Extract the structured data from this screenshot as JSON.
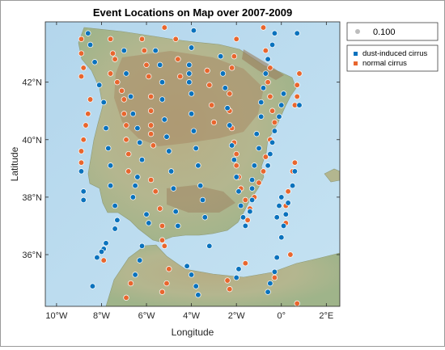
{
  "chart_data": {
    "type": "scatter",
    "title": "Event Locations on Map over 2007-2009",
    "xlabel": "Longitude",
    "ylabel": "Latitude",
    "xlim": [
      -10.5,
      2.6
    ],
    "ylim": [
      34.2,
      44.1
    ],
    "x_ticks": [
      {
        "value": -10,
        "label": "10°W"
      },
      {
        "value": -8,
        "label": "8°W"
      },
      {
        "value": -6,
        "label": "6°W"
      },
      {
        "value": -4,
        "label": "4°W"
      },
      {
        "value": -2,
        "label": "2°W"
      },
      {
        "value": 0,
        "label": "0°"
      },
      {
        "value": 2,
        "label": "2°E"
      }
    ],
    "y_ticks": [
      {
        "value": 36,
        "label": "36°N"
      },
      {
        "value": 38,
        "label": "38°N"
      },
      {
        "value": 40,
        "label": "40°N"
      },
      {
        "value": 42,
        "label": "42°N"
      }
    ],
    "size_legend": {
      "value": "0.100",
      "color": "#bdbdbd"
    },
    "legend_position": "outside-right",
    "colors": {
      "dust": "#0a72bd",
      "normal": "#e8662e",
      "sea": "#bcdcef",
      "land": "#b5b189",
      "highland": "#a1825f"
    },
    "series": [
      {
        "name": "dust-induced cirrus",
        "color": "#0a72bd",
        "points": [
          [
            -8.6,
            43.7
          ],
          [
            -8.5,
            43.3
          ],
          [
            -8.3,
            42.7
          ],
          [
            -8.1,
            41.9
          ],
          [
            -7.9,
            41.3
          ],
          [
            -7.8,
            40.4
          ],
          [
            -7.7,
            39.7
          ],
          [
            -7.6,
            39.1
          ],
          [
            -7.6,
            38.4
          ],
          [
            -7.4,
            37.7
          ],
          [
            -7.3,
            37.2
          ],
          [
            -7.4,
            36.9
          ],
          [
            -8.8,
            38.2
          ],
          [
            -8.8,
            37.9
          ],
          [
            -8.9,
            38.9
          ],
          [
            -7.8,
            36.4
          ],
          [
            -7.9,
            36.2
          ],
          [
            -8.0,
            36.1
          ],
          [
            -8.2,
            35.9
          ],
          [
            -8.4,
            34.9
          ],
          [
            -7.0,
            43.1
          ],
          [
            -6.9,
            42.3
          ],
          [
            -6.7,
            41.5
          ],
          [
            -6.6,
            40.9
          ],
          [
            -6.4,
            40.4
          ],
          [
            -6.3,
            39.9
          ],
          [
            -6.2,
            39.3
          ],
          [
            -6.4,
            38.7
          ],
          [
            -6.5,
            38.4
          ],
          [
            -6.6,
            38.0
          ],
          [
            -5.6,
            43.1
          ],
          [
            -5.4,
            42.6
          ],
          [
            -5.3,
            42.0
          ],
          [
            -5.3,
            41.4
          ],
          [
            -5.2,
            40.7
          ],
          [
            -5.1,
            40.1
          ],
          [
            -5.0,
            39.6
          ],
          [
            -4.9,
            38.9
          ],
          [
            -4.8,
            38.3
          ],
          [
            -4.7,
            37.5
          ],
          [
            -4.6,
            37.0
          ],
          [
            -6.0,
            37.4
          ],
          [
            -5.9,
            37.1
          ],
          [
            -6.2,
            36.3
          ],
          [
            -6.3,
            35.8
          ],
          [
            -6.5,
            35.3
          ],
          [
            -3.9,
            43.8
          ],
          [
            -4.0,
            43.2
          ],
          [
            -4.1,
            42.6
          ],
          [
            -4.1,
            42.3
          ],
          [
            -4.1,
            42.0
          ],
          [
            -4.0,
            41.6
          ],
          [
            -4.0,
            40.9
          ],
          [
            -3.9,
            40.3
          ],
          [
            -3.8,
            39.7
          ],
          [
            -3.7,
            39.1
          ],
          [
            -3.6,
            38.4
          ],
          [
            -3.5,
            37.9
          ],
          [
            -3.4,
            37.3
          ],
          [
            -3.2,
            36.3
          ],
          [
            -4.2,
            35.6
          ],
          [
            -4.0,
            35.3
          ],
          [
            -3.8,
            34.9
          ],
          [
            -3.7,
            34.6
          ],
          [
            -2.7,
            42.9
          ],
          [
            -2.6,
            42.3
          ],
          [
            -2.5,
            41.8
          ],
          [
            -2.4,
            41.1
          ],
          [
            -2.3,
            40.5
          ],
          [
            -2.2,
            39.8
          ],
          [
            -2.1,
            39.3
          ],
          [
            -2.0,
            38.7
          ],
          [
            -1.9,
            38.2
          ],
          [
            -1.8,
            37.7
          ],
          [
            -1.7,
            37.3
          ],
          [
            -1.6,
            37.0
          ],
          [
            -1.9,
            35.5
          ],
          [
            -2.0,
            35.2
          ],
          [
            -0.3,
            43.7
          ],
          [
            -0.4,
            43.3
          ],
          [
            -0.6,
            42.8
          ],
          [
            -0.7,
            42.3
          ],
          [
            -0.8,
            41.8
          ],
          [
            -0.9,
            41.3
          ],
          [
            -0.9,
            40.8
          ],
          [
            -1.1,
            40.2
          ],
          [
            -1.0,
            39.7
          ],
          [
            -1.2,
            39.1
          ],
          [
            -1.3,
            38.6
          ],
          [
            -1.3,
            38.3
          ],
          [
            -1.3,
            37.9
          ],
          [
            -1.4,
            37.5
          ],
          [
            0.1,
            41.6
          ],
          [
            0.0,
            41.2
          ],
          [
            -0.1,
            40.8
          ],
          [
            -0.3,
            40.3
          ],
          [
            -0.4,
            39.9
          ],
          [
            -0.5,
            39.5
          ],
          [
            -0.6,
            39.1
          ],
          [
            0.7,
            43.7
          ],
          [
            0.8,
            41.2
          ],
          [
            0.6,
            38.9
          ],
          [
            0.5,
            38.4
          ],
          [
            0.3,
            37.8
          ],
          [
            0.2,
            37.4
          ],
          [
            0.1,
            37.0
          ],
          [
            0.0,
            36.6
          ],
          [
            -0.2,
            35.9
          ],
          [
            -0.3,
            35.4
          ],
          [
            -0.5,
            35.0
          ],
          [
            -0.6,
            34.7
          ],
          [
            0.0,
            38.0
          ],
          [
            -0.1,
            37.7
          ],
          [
            -0.2,
            37.3
          ]
        ]
      },
      {
        "name": "normal cirrus",
        "color": "#e8662e",
        "points": [
          [
            -8.9,
            43.5
          ],
          [
            -8.9,
            43.0
          ],
          [
            -8.8,
            42.5
          ],
          [
            -8.9,
            42.2
          ],
          [
            -8.5,
            41.4
          ],
          [
            -8.6,
            40.9
          ],
          [
            -8.7,
            40.5
          ],
          [
            -8.8,
            40.0
          ],
          [
            -8.9,
            39.6
          ],
          [
            -8.9,
            39.2
          ],
          [
            -7.6,
            43.5
          ],
          [
            -7.5,
            43.0
          ],
          [
            -7.4,
            42.8
          ],
          [
            -7.6,
            42.3
          ],
          [
            -7.3,
            42.0
          ],
          [
            -7.1,
            41.7
          ],
          [
            -7.0,
            41.4
          ],
          [
            -7.0,
            40.9
          ],
          [
            -6.9,
            40.5
          ],
          [
            -6.9,
            40.0
          ],
          [
            -6.8,
            39.5
          ],
          [
            -6.8,
            38.9
          ],
          [
            -6.2,
            43.5
          ],
          [
            -6.1,
            43.1
          ],
          [
            -6.0,
            42.6
          ],
          [
            -5.9,
            42.2
          ],
          [
            -5.8,
            41.5
          ],
          [
            -5.8,
            41.0
          ],
          [
            -5.8,
            40.5
          ],
          [
            -5.8,
            40.2
          ],
          [
            -5.7,
            39.8
          ],
          [
            -5.2,
            43.9
          ],
          [
            -4.7,
            43.5
          ],
          [
            -4.6,
            42.8
          ],
          [
            -4.5,
            42.2
          ],
          [
            -5.8,
            38.6
          ],
          [
            -5.6,
            38.2
          ],
          [
            -5.4,
            37.6
          ],
          [
            -5.3,
            37.0
          ],
          [
            -5.3,
            36.5
          ],
          [
            -5.2,
            36.3
          ],
          [
            -5.0,
            35.5
          ],
          [
            -5.1,
            35.0
          ],
          [
            -5.3,
            34.7
          ],
          [
            -6.7,
            35.0
          ],
          [
            -6.9,
            34.5
          ],
          [
            -7.9,
            35.8
          ],
          [
            -2.0,
            43.5
          ],
          [
            -2.1,
            42.9
          ],
          [
            -2.2,
            42.5
          ],
          [
            -2.3,
            41.6
          ],
          [
            -2.3,
            41.0
          ],
          [
            -2.2,
            40.4
          ],
          [
            -2.1,
            39.9
          ],
          [
            -2.0,
            39.5
          ],
          [
            -2.0,
            39.1
          ],
          [
            -1.9,
            38.7
          ],
          [
            -1.8,
            38.3
          ],
          [
            -1.6,
            37.9
          ],
          [
            -2.3,
            34.8
          ],
          [
            -2.4,
            35.1
          ],
          [
            -1.6,
            35.7
          ],
          [
            -3.3,
            42.4
          ],
          [
            -3.2,
            41.9
          ],
          [
            -3.1,
            41.2
          ],
          [
            -3.0,
            40.6
          ],
          [
            -0.7,
            43.1
          ],
          [
            -0.5,
            42.5
          ],
          [
            -0.6,
            42.0
          ],
          [
            -0.5,
            41.5
          ],
          [
            -0.4,
            41.0
          ],
          [
            -0.3,
            40.6
          ],
          [
            -0.5,
            40.0
          ],
          [
            -0.7,
            39.4
          ],
          [
            -0.8,
            38.9
          ],
          [
            -1.0,
            38.5
          ],
          [
            -1.2,
            38.0
          ],
          [
            -1.4,
            37.6
          ],
          [
            -1.5,
            37.2
          ],
          [
            0.8,
            42.3
          ],
          [
            0.7,
            41.9
          ],
          [
            0.7,
            41.5
          ],
          [
            0.6,
            41.2
          ],
          [
            -0.8,
            43.9
          ],
          [
            0.6,
            39.2
          ],
          [
            0.5,
            38.9
          ],
          [
            0.3,
            38.2
          ],
          [
            0.2,
            37.7
          ],
          [
            0.2,
            37.1
          ],
          [
            0.4,
            36.0
          ],
          [
            0.7,
            34.3
          ],
          [
            -0.3,
            35.2
          ]
        ]
      }
    ]
  }
}
